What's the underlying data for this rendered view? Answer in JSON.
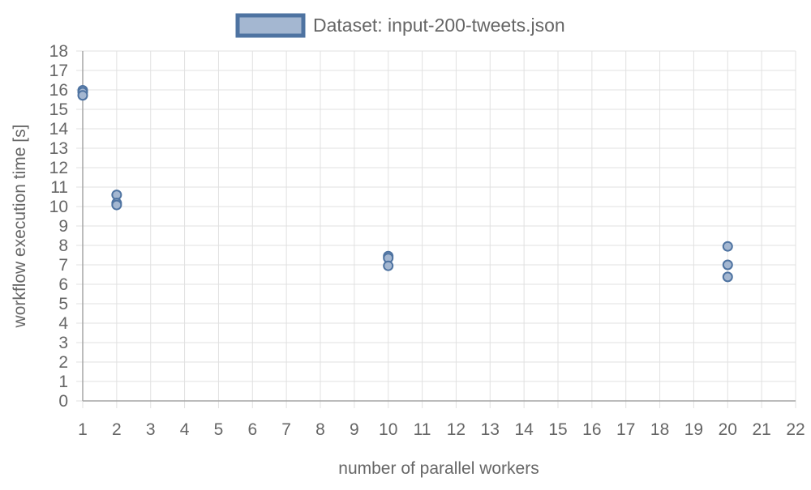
{
  "chart_data": {
    "type": "scatter",
    "title": "",
    "legend": {
      "position": "top-center",
      "label": "Dataset: input-200-tweets.json"
    },
    "xlabel": "number of parallel workers",
    "ylabel": "workflow execution time [s]",
    "xlim": [
      1,
      22
    ],
    "ylim": [
      0,
      18
    ],
    "x_ticks": [
      1,
      2,
      3,
      4,
      5,
      6,
      7,
      8,
      9,
      10,
      11,
      12,
      13,
      14,
      15,
      16,
      17,
      18,
      19,
      20,
      21,
      22
    ],
    "y_ticks": [
      0,
      1,
      2,
      3,
      4,
      5,
      6,
      7,
      8,
      9,
      10,
      11,
      12,
      13,
      14,
      15,
      16,
      17,
      18
    ],
    "grid": true,
    "series": [
      {
        "name": "Dataset: input-200-tweets.json",
        "color": "#4e73a1",
        "fill": "#a4b7d1",
        "points": [
          {
            "x": 1,
            "y": 15.98
          },
          {
            "x": 1,
            "y": 15.88
          },
          {
            "x": 1,
            "y": 15.72
          },
          {
            "x": 2,
            "y": 10.6
          },
          {
            "x": 2,
            "y": 10.18
          },
          {
            "x": 2,
            "y": 10.08
          },
          {
            "x": 10,
            "y": 7.45
          },
          {
            "x": 10,
            "y": 7.35
          },
          {
            "x": 10,
            "y": 6.95
          },
          {
            "x": 20,
            "y": 7.95
          },
          {
            "x": 20,
            "y": 7.0
          },
          {
            "x": 20,
            "y": 6.38
          }
        ]
      }
    ]
  }
}
